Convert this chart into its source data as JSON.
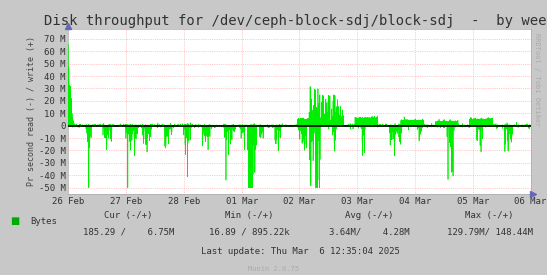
{
  "title": "Disk throughput for /dev/ceph-block-sdj/block-sdj  -  by week",
  "ylabel": "Pr second read (-) / write (+)",
  "watermark": "RRDTool / Tobi Oetiker",
  "munin_version": "Munin 2.0.75",
  "background_color": "#C8C8C8",
  "plot_bg_color": "#FFFFFF",
  "grid_color": "#FF9999",
  "line_color": "#00EE00",
  "zero_line_color": "#000000",
  "ylim": [
    -55000000,
    78000000
  ],
  "yticks": [
    -50000000,
    -40000000,
    -30000000,
    -20000000,
    -10000000,
    0,
    10000000,
    20000000,
    30000000,
    40000000,
    50000000,
    60000000,
    70000000
  ],
  "ytick_labels": [
    "-50 M",
    "-40 M",
    "-30 M",
    "-20 M",
    "-10 M",
    "0",
    "10 M",
    "20 M",
    "30 M",
    "40 M",
    "50 M",
    "60 M",
    "70 M"
  ],
  "x_date_labels": [
    "26 Feb",
    "27 Feb",
    "28 Feb",
    "01 Mar",
    "02 Mar",
    "03 Mar",
    "04 Mar",
    "05 Mar",
    "06 Mar"
  ],
  "legend_label": "Bytes",
  "legend_color": "#00AA00",
  "cur_label": "Cur (-/+)",
  "cur_val": "185.29 /    6.75M",
  "min_label": "Min (-/+)",
  "min_val": "16.89 / 895.22k",
  "avg_label": "Avg (-/+)",
  "avg_val": "3.64M/    4.28M",
  "max_label": "Max (-/+)",
  "max_val": "129.79M/ 148.44M",
  "last_update": "Last update: Thu Mar  6 12:35:04 2025",
  "title_fontsize": 10,
  "axis_fontsize": 6.5,
  "legend_fontsize": 6.5,
  "watermark_fontsize": 5
}
